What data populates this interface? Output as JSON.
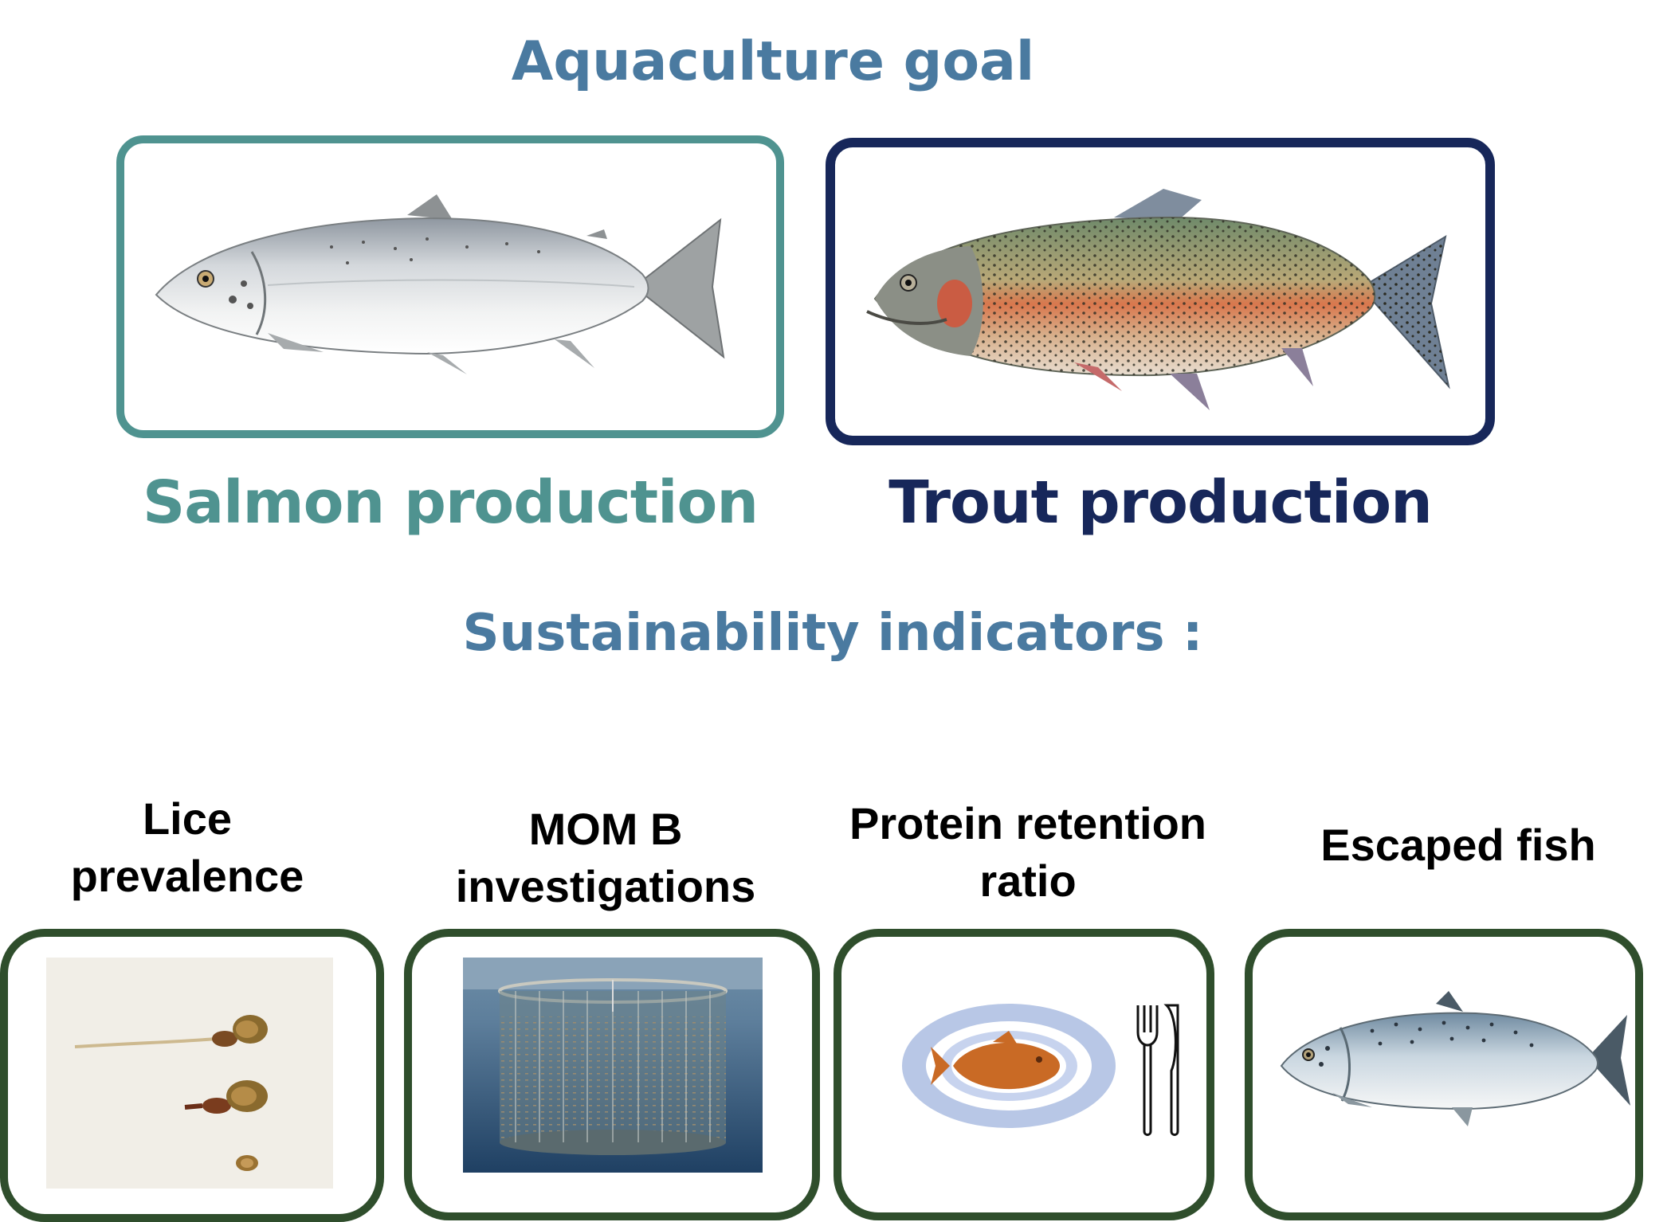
{
  "titles": {
    "goal": "Aquaculture goal",
    "indicators": "Sustainability indicators :"
  },
  "production": [
    {
      "label": "Salmon production",
      "image": "atlantic-salmon-illustration",
      "color": "#4f9390"
    },
    {
      "label": "Trout production",
      "image": "rainbow-trout-photo",
      "color": "#17275a"
    }
  ],
  "indicators": [
    {
      "lines": [
        "Lice",
        "prevalence"
      ],
      "image": "sea-lice-photo"
    },
    {
      "lines": [
        "MOM B",
        "investigations"
      ],
      "image": "fish-cage-render"
    },
    {
      "lines": [
        "Protein retention",
        "ratio"
      ],
      "image": "fish-on-plate-icon"
    },
    {
      "lines": [
        "Escaped fish"
      ],
      "image": "escaped-salmon-illustration"
    }
  ],
  "colors": {
    "title_blue": "#4a7aa0",
    "salmon_teal": "#4f9390",
    "trout_navy": "#17275a",
    "indicator_green": "#2f4e2c"
  }
}
